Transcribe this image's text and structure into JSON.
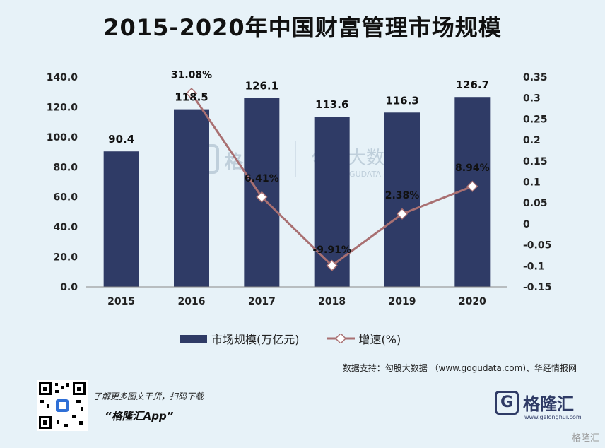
{
  "title": "2015-2020年中国财富管理市场规模",
  "chart_data": {
    "type": "bar",
    "categories": [
      "2015",
      "2016",
      "2017",
      "2018",
      "2019",
      "2020"
    ],
    "series": [
      {
        "name": "市场规模(万亿元)",
        "type": "bar",
        "axis": "left",
        "values": [
          90.4,
          118.5,
          126.1,
          113.6,
          116.3,
          126.7
        ],
        "labels": [
          "90.4",
          "118.5",
          "126.1",
          "113.6",
          "116.3",
          "126.7"
        ],
        "color": "#2f3b66"
      },
      {
        "name": "增速(%)",
        "type": "line",
        "axis": "right",
        "values": [
          0.3108,
          0.0641,
          -0.0991,
          0.0238,
          0.0894
        ],
        "x": [
          "2016",
          "2017",
          "2018",
          "2019",
          "2020"
        ],
        "labels": [
          "31.08%",
          "6.41%",
          "-9.91%",
          "2.38%",
          "8.94%"
        ],
        "color": "#a97072"
      }
    ],
    "y_left": {
      "min": 0,
      "max": 140,
      "ticks": [
        "0.0",
        "20.0",
        "40.0",
        "60.0",
        "80.0",
        "100.0",
        "120.0",
        "140.0"
      ]
    },
    "y_right": {
      "min": -0.15,
      "max": 0.35,
      "ticks": [
        "-0.15",
        "-0.1",
        "-0.05",
        "0",
        "0.05",
        "0.1",
        "0.15",
        "0.2",
        "0.25",
        "0.3",
        "0.35"
      ]
    },
    "grid": false,
    "legend": "bottom"
  },
  "legend": {
    "bar_label": "市场规模(万亿元)",
    "line_label": "增速(%)"
  },
  "watermark": {
    "logo_text": "格隆汇",
    "brand_text": "勾股大数据",
    "url": "www.GUGUDATA.com"
  },
  "source": "数据支持：勾股大数据 （www.gogudata.com)、华经情报网",
  "promo": {
    "line1": "了解更多图文干货，扫码下载",
    "line2": "“格隆汇App”"
  },
  "logo": {
    "mark": "G",
    "name": "格隆汇",
    "url": "www.gelonghui.com"
  },
  "corner_watermark": "格隆汇"
}
